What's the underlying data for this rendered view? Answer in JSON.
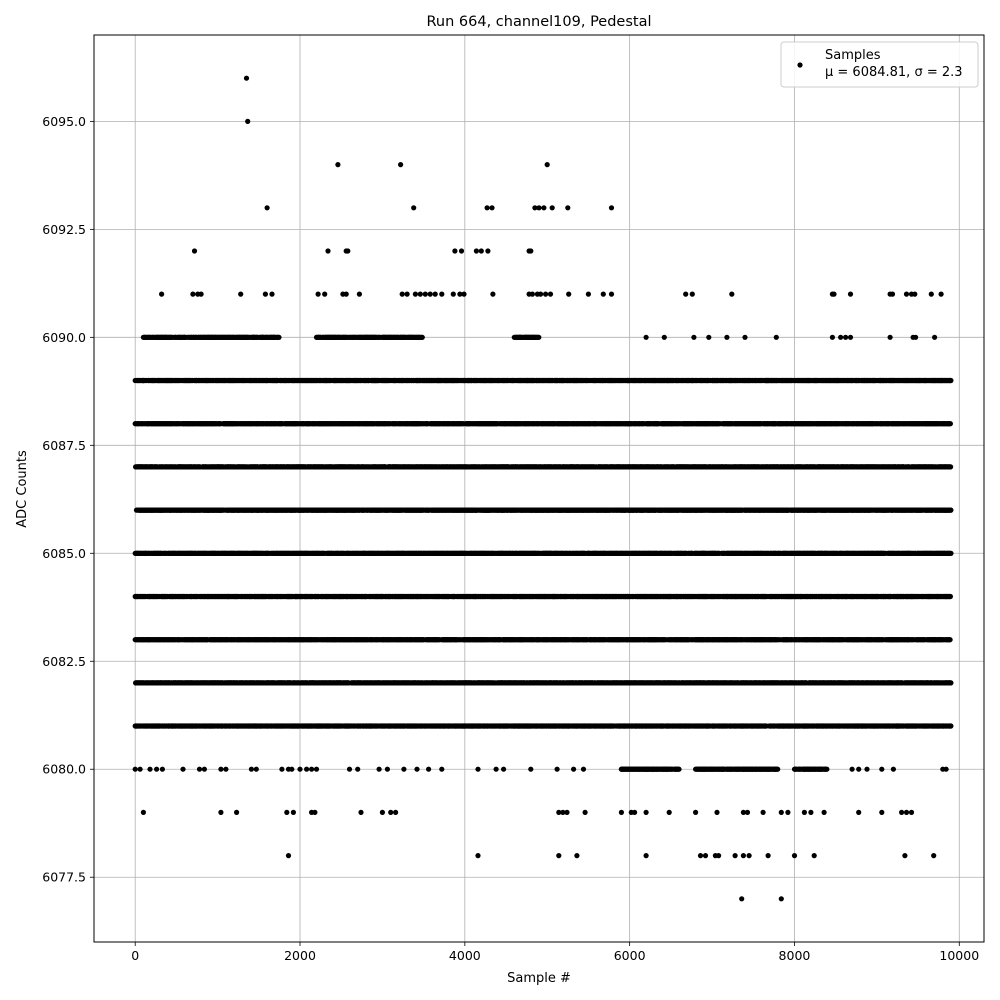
{
  "chart_data": {
    "type": "scatter",
    "title": "Run 664, channel109, Pedestal",
    "xlabel": "Sample #",
    "ylabel": "ADC Counts",
    "xlim": [
      -500,
      10300
    ],
    "ylim": [
      6076.0,
      6097.0
    ],
    "grid": true,
    "legend_position": "top-right",
    "xticks": [
      0,
      2000,
      4000,
      6000,
      8000,
      10000
    ],
    "xtick_labels": [
      "0",
      "2000",
      "4000",
      "6000",
      "8000",
      "10000"
    ],
    "yticks": [
      6077.5,
      6080.0,
      6082.5,
      6085.0,
      6087.5,
      6090.0,
      6092.5,
      6095.0
    ],
    "ytick_labels": [
      "6077.5",
      "6080.0",
      "6082.5",
      "6085.0",
      "6087.5",
      "6090.0",
      "6092.5",
      "6095.0"
    ],
    "marker_color": "#000000",
    "series": [
      {
        "name": "Samples",
        "stats_label": "μ = 6084.81, σ = 2.3",
        "mean": 6084.81,
        "sigma": 2.3,
        "n_samples": 9900,
        "x_range": [
          0,
          9899
        ],
        "dense_levels": [
          {
            "y": 6081,
            "x_ranges": [
              [
                0,
                9899
              ]
            ]
          },
          {
            "y": 6082,
            "x_ranges": [
              [
                0,
                9899
              ]
            ]
          },
          {
            "y": 6083,
            "x_ranges": [
              [
                0,
                9899
              ]
            ]
          },
          {
            "y": 6084,
            "x_ranges": [
              [
                0,
                9899
              ]
            ]
          },
          {
            "y": 6085,
            "x_ranges": [
              [
                0,
                9899
              ]
            ]
          },
          {
            "y": 6086,
            "x_ranges": [
              [
                0,
                9899
              ]
            ]
          },
          {
            "y": 6087,
            "x_ranges": [
              [
                0,
                9899
              ]
            ]
          },
          {
            "y": 6088,
            "x_ranges": [
              [
                0,
                9899
              ]
            ]
          },
          {
            "y": 6089,
            "x_ranges": [
              [
                0,
                9899
              ]
            ]
          },
          {
            "y": 6090,
            "x_ranges": [
              [
                100,
                1750
              ],
              [
                2200,
                3500
              ],
              [
                4600,
                4900
              ]
            ]
          },
          {
            "y": 6080,
            "x_ranges": [
              [
                5900,
                6600
              ],
              [
                6800,
                7300
              ],
              [
                7300,
                7800
              ],
              [
                8000,
                8400
              ]
            ]
          }
        ],
        "sparse_points": [
          [
            1350,
            6096
          ],
          [
            1365,
            6095
          ],
          [
            2460,
            6094
          ],
          [
            3220,
            6094
          ],
          [
            5000,
            6094
          ],
          [
            1600,
            6093
          ],
          [
            3380,
            6093
          ],
          [
            4270,
            6093
          ],
          [
            4330,
            6093
          ],
          [
            4850,
            6093
          ],
          [
            4900,
            6093
          ],
          [
            4960,
            6093
          ],
          [
            5060,
            6093
          ],
          [
            5250,
            6093
          ],
          [
            5780,
            6093
          ],
          [
            720,
            6092
          ],
          [
            2340,
            6092
          ],
          [
            2560,
            6092
          ],
          [
            2580,
            6092
          ],
          [
            3880,
            6092
          ],
          [
            3960,
            6092
          ],
          [
            4140,
            6092
          ],
          [
            4200,
            6092
          ],
          [
            4280,
            6092
          ],
          [
            4780,
            6092
          ],
          [
            4800,
            6092
          ],
          [
            320,
            6091
          ],
          [
            700,
            6091
          ],
          [
            760,
            6091
          ],
          [
            800,
            6091
          ],
          [
            1280,
            6091
          ],
          [
            1580,
            6091
          ],
          [
            1660,
            6091
          ],
          [
            2220,
            6091
          ],
          [
            2300,
            6091
          ],
          [
            2520,
            6091
          ],
          [
            2560,
            6091
          ],
          [
            2720,
            6091
          ],
          [
            3240,
            6091
          ],
          [
            3300,
            6091
          ],
          [
            3400,
            6091
          ],
          [
            3460,
            6091
          ],
          [
            3520,
            6091
          ],
          [
            3580,
            6091
          ],
          [
            3640,
            6091
          ],
          [
            3720,
            6091
          ],
          [
            3860,
            6091
          ],
          [
            3940,
            6091
          ],
          [
            3990,
            6091
          ],
          [
            4340,
            6091
          ],
          [
            4780,
            6091
          ],
          [
            4820,
            6091
          ],
          [
            4880,
            6091
          ],
          [
            4920,
            6091
          ],
          [
            4980,
            6091
          ],
          [
            5040,
            6091
          ],
          [
            5260,
            6091
          ],
          [
            5500,
            6091
          ],
          [
            5680,
            6091
          ],
          [
            5780,
            6091
          ],
          [
            6680,
            6091
          ],
          [
            6760,
            6091
          ],
          [
            7240,
            6091
          ],
          [
            8460,
            6091
          ],
          [
            8480,
            6091
          ],
          [
            8680,
            6091
          ],
          [
            9160,
            6091
          ],
          [
            9190,
            6091
          ],
          [
            9360,
            6091
          ],
          [
            9420,
            6091
          ],
          [
            9460,
            6091
          ],
          [
            9660,
            6091
          ],
          [
            9780,
            6091
          ],
          [
            6200,
            6090
          ],
          [
            6420,
            6090
          ],
          [
            6780,
            6090
          ],
          [
            6960,
            6090
          ],
          [
            7180,
            6090
          ],
          [
            7400,
            6090
          ],
          [
            7780,
            6090
          ],
          [
            8460,
            6090
          ],
          [
            8560,
            6090
          ],
          [
            8620,
            6090
          ],
          [
            8680,
            6090
          ],
          [
            9160,
            6090
          ],
          [
            9440,
            6090
          ],
          [
            9470,
            6090
          ],
          [
            9700,
            6090
          ],
          [
            6280,
            6080
          ],
          [
            9800,
            6080
          ],
          [
            9840,
            6080
          ],
          [
            8700,
            6080
          ],
          [
            8780,
            6080
          ],
          [
            8880,
            6080
          ],
          [
            9060,
            6080
          ],
          [
            9200,
            6080
          ],
          [
            0,
            6080
          ],
          [
            60,
            6080
          ],
          [
            180,
            6080
          ],
          [
            260,
            6080
          ],
          [
            330,
            6080
          ],
          [
            580,
            6080
          ],
          [
            780,
            6080
          ],
          [
            840,
            6080
          ],
          [
            1040,
            6080
          ],
          [
            1100,
            6080
          ],
          [
            1410,
            6080
          ],
          [
            1470,
            6080
          ],
          [
            1780,
            6080
          ],
          [
            1860,
            6080
          ],
          [
            1900,
            6080
          ],
          [
            2000,
            6080
          ],
          [
            2080,
            6080
          ],
          [
            2140,
            6080
          ],
          [
            2200,
            6080
          ],
          [
            2600,
            6080
          ],
          [
            2700,
            6080
          ],
          [
            2960,
            6080
          ],
          [
            3060,
            6080
          ],
          [
            3260,
            6080
          ],
          [
            3420,
            6080
          ],
          [
            3560,
            6080
          ],
          [
            3720,
            6080
          ],
          [
            4160,
            6080
          ],
          [
            4380,
            6080
          ],
          [
            4470,
            6080
          ],
          [
            4800,
            6080
          ],
          [
            5120,
            6080
          ],
          [
            5320,
            6080
          ],
          [
            5440,
            6080
          ],
          [
            5900,
            6080
          ],
          [
            100,
            6079
          ],
          [
            1040,
            6079
          ],
          [
            1230,
            6079
          ],
          [
            1840,
            6079
          ],
          [
            1920,
            6079
          ],
          [
            2140,
            6079
          ],
          [
            2180,
            6079
          ],
          [
            2740,
            6079
          ],
          [
            3000,
            6079
          ],
          [
            3100,
            6079
          ],
          [
            3160,
            6079
          ],
          [
            5140,
            6079
          ],
          [
            5190,
            6079
          ],
          [
            5240,
            6079
          ],
          [
            5460,
            6079
          ],
          [
            5900,
            6079
          ],
          [
            6020,
            6079
          ],
          [
            6060,
            6079
          ],
          [
            6200,
            6079
          ],
          [
            6480,
            6079
          ],
          [
            6800,
            6079
          ],
          [
            7060,
            6079
          ],
          [
            7380,
            6079
          ],
          [
            7430,
            6079
          ],
          [
            7620,
            6079
          ],
          [
            7840,
            6079
          ],
          [
            7920,
            6079
          ],
          [
            8120,
            6079
          ],
          [
            8200,
            6079
          ],
          [
            8360,
            6079
          ],
          [
            8780,
            6079
          ],
          [
            9060,
            6079
          ],
          [
            9300,
            6079
          ],
          [
            9360,
            6079
          ],
          [
            9420,
            6079
          ],
          [
            1860,
            6078
          ],
          [
            4160,
            6078
          ],
          [
            5140,
            6078
          ],
          [
            5360,
            6078
          ],
          [
            6200,
            6078
          ],
          [
            6860,
            6078
          ],
          [
            6920,
            6078
          ],
          [
            7040,
            6078
          ],
          [
            7080,
            6078
          ],
          [
            7280,
            6078
          ],
          [
            7380,
            6078
          ],
          [
            7450,
            6078
          ],
          [
            7680,
            6078
          ],
          [
            8000,
            6078
          ],
          [
            8240,
            6078
          ],
          [
            9340,
            6078
          ],
          [
            9690,
            6078
          ],
          [
            7360,
            6077
          ],
          [
            7840,
            6077
          ]
        ]
      }
    ]
  }
}
